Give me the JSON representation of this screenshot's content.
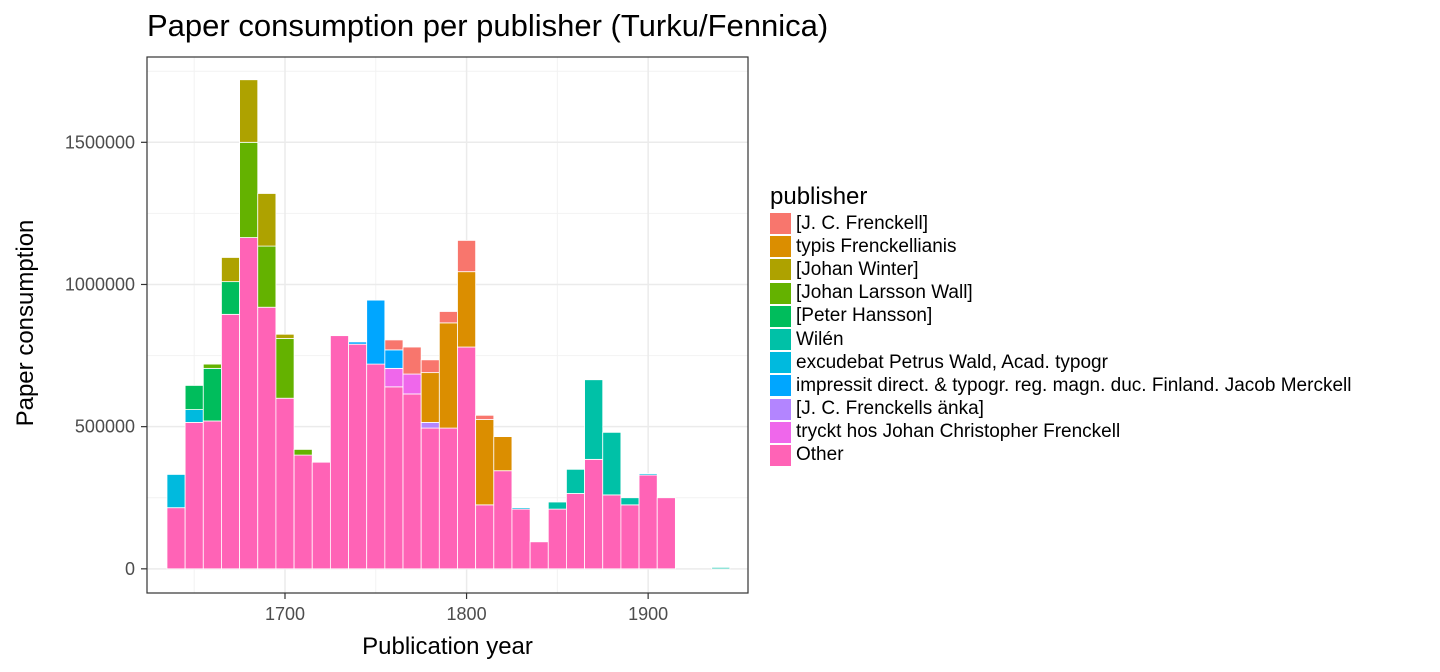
{
  "chart_data": {
    "type": "bar",
    "stacked": true,
    "title": "Paper consumption per publisher (Turku/Fennica)",
    "xlabel": "Publication year",
    "ylabel": "Paper consumption",
    "xlim": [
      1624,
      1955
    ],
    "ylim": [
      -85000,
      1800000
    ],
    "x_ticks": [
      1700,
      1800,
      1900
    ],
    "y_ticks": [
      0,
      500000,
      1000000,
      1500000
    ],
    "y_tick_labels": [
      "0",
      "500000",
      "1000000",
      "1500000"
    ],
    "grid": true,
    "legend_position": "right",
    "legend_title": "publisher",
    "series_names": [
      "[J. C. Frenckell]",
      "typis Frenckellianis",
      "[Johan Winter]",
      "[Johan Larsson Wall]",
      "[Peter Hansson]",
      "Wilén",
      "excudebat Petrus Wald, Acad. typogr",
      "impressit direct. & typogr. reg. magn. duc. Finland. Jacob Merckell",
      "[J. C. Frenckells änka]",
      "tryckt hos Johan Christopher Frenckell",
      "Other"
    ],
    "series_colors": [
      "#F8766D",
      "#DB8E00",
      "#AEA200",
      "#64B200",
      "#00BD5C",
      "#00C1A7",
      "#00BADE",
      "#00A6FF",
      "#B385FF",
      "#EF67EB",
      "#FF63B6"
    ],
    "bin_width": 10,
    "bins": [
      {
        "x": 1640,
        "segments": [
          {
            "s": 10,
            "v": 215000
          },
          {
            "s": 6,
            "v": 117000
          }
        ]
      },
      {
        "x": 1650,
        "segments": [
          {
            "s": 10,
            "v": 515000
          },
          {
            "s": 6,
            "v": 45000
          },
          {
            "s": 4,
            "v": 85000
          }
        ]
      },
      {
        "x": 1660,
        "segments": [
          {
            "s": 10,
            "v": 520000
          },
          {
            "s": 4,
            "v": 185000
          },
          {
            "s": 3,
            "v": 15000
          }
        ]
      },
      {
        "x": 1670,
        "segments": [
          {
            "s": 10,
            "v": 895000
          },
          {
            "s": 4,
            "v": 115000
          },
          {
            "s": 2,
            "v": 85000
          }
        ]
      },
      {
        "x": 1680,
        "segments": [
          {
            "s": 10,
            "v": 1165000
          },
          {
            "s": 3,
            "v": 335000
          },
          {
            "s": 2,
            "v": 220000
          }
        ]
      },
      {
        "x": 1690,
        "segments": [
          {
            "s": 10,
            "v": 920000
          },
          {
            "s": 3,
            "v": 215000
          },
          {
            "s": 2,
            "v": 185000
          }
        ]
      },
      {
        "x": 1700,
        "segments": [
          {
            "s": 10,
            "v": 600000
          },
          {
            "s": 3,
            "v": 210000
          },
          {
            "s": 2,
            "v": 15000
          }
        ]
      },
      {
        "x": 1710,
        "segments": [
          {
            "s": 10,
            "v": 400000
          },
          {
            "s": 3,
            "v": 20000
          }
        ]
      },
      {
        "x": 1720,
        "segments": [
          {
            "s": 10,
            "v": 375000
          }
        ]
      },
      {
        "x": 1730,
        "segments": [
          {
            "s": 10,
            "v": 820000
          }
        ]
      },
      {
        "x": 1740,
        "segments": [
          {
            "s": 10,
            "v": 790000
          },
          {
            "s": 7,
            "v": 8000
          }
        ]
      },
      {
        "x": 1750,
        "segments": [
          {
            "s": 10,
            "v": 720000
          },
          {
            "s": 7,
            "v": 225000
          }
        ]
      },
      {
        "x": 1760,
        "segments": [
          {
            "s": 10,
            "v": 640000
          },
          {
            "s": 9,
            "v": 65000
          },
          {
            "s": 7,
            "v": 65000
          },
          {
            "s": 0,
            "v": 35000
          }
        ]
      },
      {
        "x": 1770,
        "segments": [
          {
            "s": 10,
            "v": 615000
          },
          {
            "s": 9,
            "v": 70000
          },
          {
            "s": 0,
            "v": 95000
          }
        ]
      },
      {
        "x": 1780,
        "segments": [
          {
            "s": 10,
            "v": 495000
          },
          {
            "s": 8,
            "v": 20000
          },
          {
            "s": 1,
            "v": 175000
          },
          {
            "s": 0,
            "v": 45000
          }
        ]
      },
      {
        "x": 1790,
        "segments": [
          {
            "s": 10,
            "v": 495000
          },
          {
            "s": 1,
            "v": 370000
          },
          {
            "s": 0,
            "v": 40000
          }
        ]
      },
      {
        "x": 1800,
        "segments": [
          {
            "s": 10,
            "v": 780000
          },
          {
            "s": 1,
            "v": 265000
          },
          {
            "s": 0,
            "v": 110000
          }
        ]
      },
      {
        "x": 1810,
        "segments": [
          {
            "s": 10,
            "v": 225000
          },
          {
            "s": 1,
            "v": 300000
          },
          {
            "s": 0,
            "v": 15000
          }
        ]
      },
      {
        "x": 1820,
        "segments": [
          {
            "s": 10,
            "v": 345000
          },
          {
            "s": 1,
            "v": 120000
          }
        ]
      },
      {
        "x": 1830,
        "segments": [
          {
            "s": 10,
            "v": 210000
          },
          {
            "s": 6,
            "v": 5000
          }
        ]
      },
      {
        "x": 1840,
        "segments": [
          {
            "s": 10,
            "v": 95000
          }
        ]
      },
      {
        "x": 1850,
        "segments": [
          {
            "s": 10,
            "v": 210000
          },
          {
            "s": 5,
            "v": 25000
          }
        ]
      },
      {
        "x": 1860,
        "segments": [
          {
            "s": 10,
            "v": 265000
          },
          {
            "s": 5,
            "v": 85000
          }
        ]
      },
      {
        "x": 1870,
        "segments": [
          {
            "s": 10,
            "v": 385000
          },
          {
            "s": 5,
            "v": 280000
          }
        ]
      },
      {
        "x": 1880,
        "segments": [
          {
            "s": 10,
            "v": 260000
          },
          {
            "s": 5,
            "v": 220000
          }
        ]
      },
      {
        "x": 1890,
        "segments": [
          {
            "s": 10,
            "v": 225000
          },
          {
            "s": 5,
            "v": 25000
          }
        ]
      },
      {
        "x": 1900,
        "segments": [
          {
            "s": 10,
            "v": 330000
          },
          {
            "s": 6,
            "v": 5000
          }
        ]
      },
      {
        "x": 1910,
        "segments": [
          {
            "s": 10,
            "v": 250000
          }
        ]
      },
      {
        "x": 1940,
        "segments": [
          {
            "s": 5,
            "v": 5000
          }
        ]
      }
    ]
  }
}
